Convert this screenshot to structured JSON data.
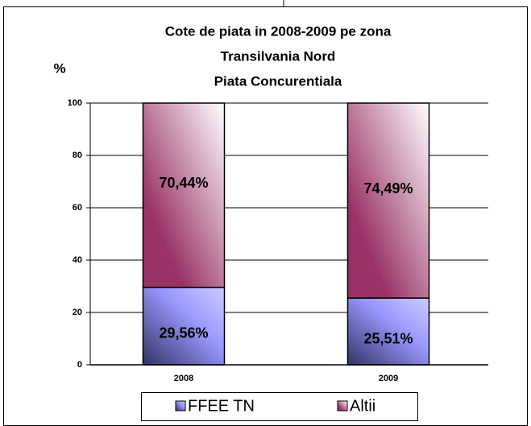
{
  "chart_data": {
    "type": "stacked_bar",
    "title": [
      "Cote de piata in 2008-2009 pe zona",
      "Transilvania Nord",
      "Piata Concurentiala"
    ],
    "y_label": "%",
    "categories": [
      "2008",
      "2009"
    ],
    "series": [
      {
        "name": "FFEE TN",
        "color": "#9999ff",
        "values": [
          29.56,
          25.51
        ],
        "value_labels": [
          "29,56%",
          "25,51%"
        ]
      },
      {
        "name": "Altii",
        "color": "#993366",
        "values": [
          70.44,
          74.49
        ],
        "value_labels": [
          "70,44%",
          "74,49%"
        ]
      }
    ],
    "ylim": [
      0,
      100
    ],
    "yticks": [
      0,
      20,
      40,
      60,
      80,
      100
    ],
    "grid": true,
    "legend": "bottom"
  }
}
